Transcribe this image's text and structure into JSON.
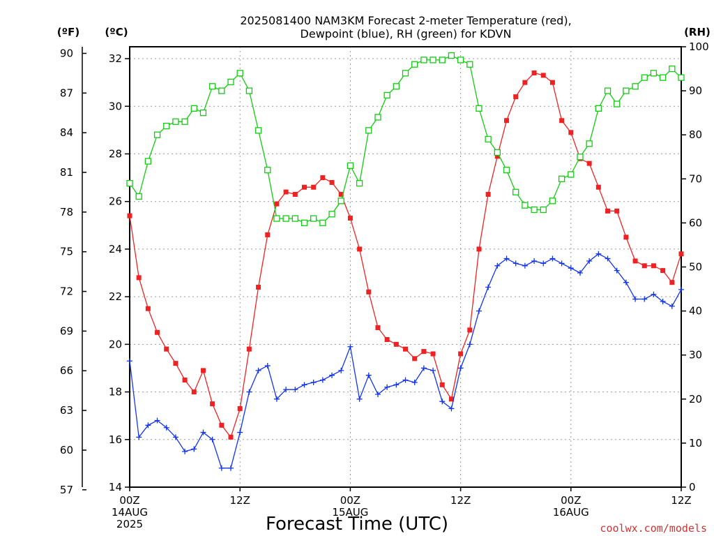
{
  "chart_data": {
    "type": "line",
    "title_line1": "2025081400 NAM3KM Forecast 2-meter Temperature (red),",
    "title_line2": "Dewpoint (blue), RH (green) for KDVN",
    "xlabel": "Forecast Time (UTC)",
    "credit": "coolwx.com/models",
    "units": {
      "fahrenheit": "(ºF)",
      "celsius": "(ºC)",
      "rh": "(RH)"
    },
    "x_ticks": [
      {
        "hour": 0,
        "lines": [
          "00Z",
          "14AUG",
          "2025"
        ]
      },
      {
        "hour": 12,
        "lines": [
          "12Z"
        ]
      },
      {
        "hour": 24,
        "lines": [
          "00Z",
          "15AUG"
        ]
      },
      {
        "hour": 36,
        "lines": [
          "12Z"
        ]
      },
      {
        "hour": 48,
        "lines": [
          "00Z",
          "16AUG"
        ]
      },
      {
        "hour": 60,
        "lines": [
          "12Z"
        ]
      }
    ],
    "xlim": [
      0,
      60
    ],
    "ylim_celsius": [
      14,
      32.5
    ],
    "ylim_fahrenheit": [
      57.2,
      90.5
    ],
    "ylim_rh": [
      0,
      100
    ],
    "celsius_ticks": [
      14,
      16,
      18,
      20,
      22,
      24,
      26,
      28,
      30,
      32
    ],
    "fahrenheit_ticks": [
      57,
      60,
      63,
      66,
      69,
      72,
      75,
      78,
      81,
      84,
      87,
      90
    ],
    "rh_ticks": [
      0,
      10,
      20,
      30,
      40,
      50,
      60,
      70,
      80,
      90,
      100
    ],
    "grid": true,
    "colors": {
      "temperature": "#ee2222",
      "dewpoint": "#1133ee",
      "rh": "#11cc11",
      "axis": "#000000",
      "grid": "#999999",
      "credit": "#cc3333"
    },
    "series": [
      {
        "key": "temperature",
        "unit": "celsius",
        "marker": "filled-square",
        "x": [
          0,
          1,
          2,
          3,
          4,
          5,
          6,
          7,
          8,
          9,
          10,
          11,
          12,
          13,
          14,
          15,
          16,
          17,
          18,
          19,
          20,
          21,
          22,
          23,
          24,
          25,
          26,
          27,
          28,
          29,
          30,
          31,
          32,
          33,
          34,
          35,
          36,
          37,
          38,
          39,
          40,
          41,
          42,
          43,
          44,
          45,
          46,
          47,
          48,
          49,
          50,
          51,
          52,
          53,
          54,
          55,
          56,
          57,
          58,
          59,
          60
        ],
        "values": [
          25.4,
          22.8,
          21.5,
          20.5,
          19.8,
          19.2,
          18.5,
          18.0,
          18.9,
          17.5,
          16.6,
          16.1,
          17.3,
          19.8,
          22.4,
          24.6,
          25.9,
          26.4,
          26.3,
          26.6,
          26.6,
          27.0,
          26.8,
          26.3,
          25.3,
          24.0,
          22.2,
          20.7,
          20.2,
          20.0,
          19.8,
          19.4,
          19.7,
          19.6,
          18.3,
          17.7,
          19.6,
          20.6,
          24.0,
          26.3,
          27.9,
          29.4,
          30.4,
          31.0,
          31.4,
          31.3,
          31.0,
          29.4,
          28.9,
          27.8,
          27.6,
          26.6,
          25.6,
          25.6,
          24.5,
          23.5,
          23.3,
          23.3,
          23.1,
          22.6,
          23.8
        ]
      },
      {
        "key": "dewpoint",
        "unit": "celsius",
        "marker": "plus",
        "x": [
          0,
          1,
          2,
          3,
          4,
          5,
          6,
          7,
          8,
          9,
          10,
          11,
          12,
          13,
          14,
          15,
          16,
          17,
          18,
          19,
          20,
          21,
          22,
          23,
          24,
          25,
          26,
          27,
          28,
          29,
          30,
          31,
          32,
          33,
          34,
          35,
          36,
          37,
          38,
          39,
          40,
          41,
          42,
          43,
          44,
          45,
          46,
          47,
          48,
          49,
          50,
          51,
          52,
          53,
          54,
          55,
          56,
          57,
          58,
          59,
          60
        ],
        "values": [
          19.3,
          16.1,
          16.6,
          16.8,
          16.5,
          16.1,
          15.5,
          15.6,
          16.3,
          16.0,
          14.8,
          14.8,
          16.3,
          18.0,
          18.9,
          19.1,
          17.7,
          18.1,
          18.1,
          18.3,
          18.4,
          18.5,
          18.7,
          18.9,
          19.9,
          17.7,
          18.7,
          17.9,
          18.2,
          18.3,
          18.5,
          18.4,
          19.0,
          18.9,
          17.6,
          17.3,
          19.0,
          20.0,
          21.4,
          22.4,
          23.3,
          23.6,
          23.4,
          23.3,
          23.5,
          23.4,
          23.6,
          23.4,
          23.2,
          23.0,
          23.5,
          23.8,
          23.6,
          23.1,
          22.6,
          21.9,
          21.9,
          22.1,
          21.8,
          21.6,
          22.3
        ]
      },
      {
        "key": "rh",
        "unit": "rh",
        "marker": "open-square",
        "x": [
          0,
          1,
          2,
          3,
          4,
          5,
          6,
          7,
          8,
          9,
          10,
          11,
          12,
          13,
          14,
          15,
          16,
          17,
          18,
          19,
          20,
          21,
          22,
          23,
          24,
          25,
          26,
          27,
          28,
          29,
          30,
          31,
          32,
          33,
          34,
          35,
          36,
          37,
          38,
          39,
          40,
          41,
          42,
          43,
          44,
          45,
          46,
          47,
          48,
          49,
          50,
          51,
          52,
          53,
          54,
          55,
          56,
          57,
          58,
          59,
          60
        ],
        "values": [
          69,
          66,
          74,
          80,
          82,
          83,
          83,
          86,
          85,
          91,
          90,
          92,
          94,
          90,
          81,
          72,
          61,
          61,
          61,
          60,
          61,
          60,
          62,
          65,
          73,
          69,
          81,
          84,
          89,
          91,
          94,
          96,
          97,
          97,
          97,
          98,
          97,
          96,
          86,
          79,
          76,
          72,
          67,
          64,
          63,
          63,
          65,
          70,
          71,
          75,
          78,
          86,
          90,
          87,
          90,
          91,
          93,
          94,
          93,
          95,
          93
        ]
      }
    ]
  }
}
